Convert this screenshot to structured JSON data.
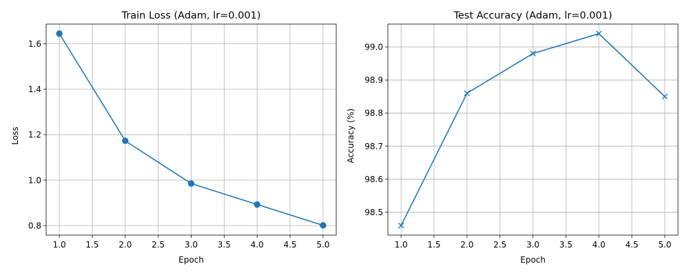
{
  "chart_data": [
    {
      "type": "line",
      "title": "Train Loss (Adam, lr=0.001)",
      "xlabel": "Epoch",
      "ylabel": "Loss",
      "x": [
        1,
        2,
        3,
        4,
        5
      ],
      "series": [
        {
          "values": [
            1.645,
            1.173,
            0.985,
            0.893,
            0.801
          ],
          "color": "#1f77b4",
          "marker": "circle"
        }
      ],
      "xlim": [
        0.8,
        5.2
      ],
      "ylim": [
        0.758,
        1.687
      ],
      "xticks": [
        1.0,
        1.5,
        2.0,
        2.5,
        3.0,
        3.5,
        4.0,
        4.5,
        5.0
      ],
      "xtick_labels": [
        "1.0",
        "1.5",
        "2.0",
        "2.5",
        "3.0",
        "3.5",
        "4.0",
        "4.5",
        "5.0"
      ],
      "yticks": [
        0.8,
        1.0,
        1.2,
        1.4,
        1.6
      ],
      "ytick_labels": [
        "0.8",
        "1.0",
        "1.2",
        "1.4",
        "1.6"
      ],
      "grid": true
    },
    {
      "type": "line",
      "title": "Test Accuracy (Adam, lr=0.001)",
      "xlabel": "Epoch",
      "ylabel": "Accuracy (%)",
      "x": [
        1,
        2,
        3,
        4,
        5
      ],
      "series": [
        {
          "values": [
            98.46,
            98.86,
            98.98,
            99.04,
            98.85
          ],
          "color": "#1f77b4",
          "marker": "x"
        }
      ],
      "xlim": [
        0.8,
        5.2
      ],
      "ylim": [
        98.431,
        99.069
      ],
      "xticks": [
        1.0,
        1.5,
        2.0,
        2.5,
        3.0,
        3.5,
        4.0,
        4.5,
        5.0
      ],
      "xtick_labels": [
        "1.0",
        "1.5",
        "2.0",
        "2.5",
        "3.0",
        "3.5",
        "4.0",
        "4.5",
        "5.0"
      ],
      "yticks": [
        98.5,
        98.6,
        98.7,
        98.8,
        98.9,
        99.0
      ],
      "ytick_labels": [
        "98.5",
        "98.6",
        "98.7",
        "98.8",
        "98.9",
        "99.0"
      ],
      "grid": true
    }
  ]
}
